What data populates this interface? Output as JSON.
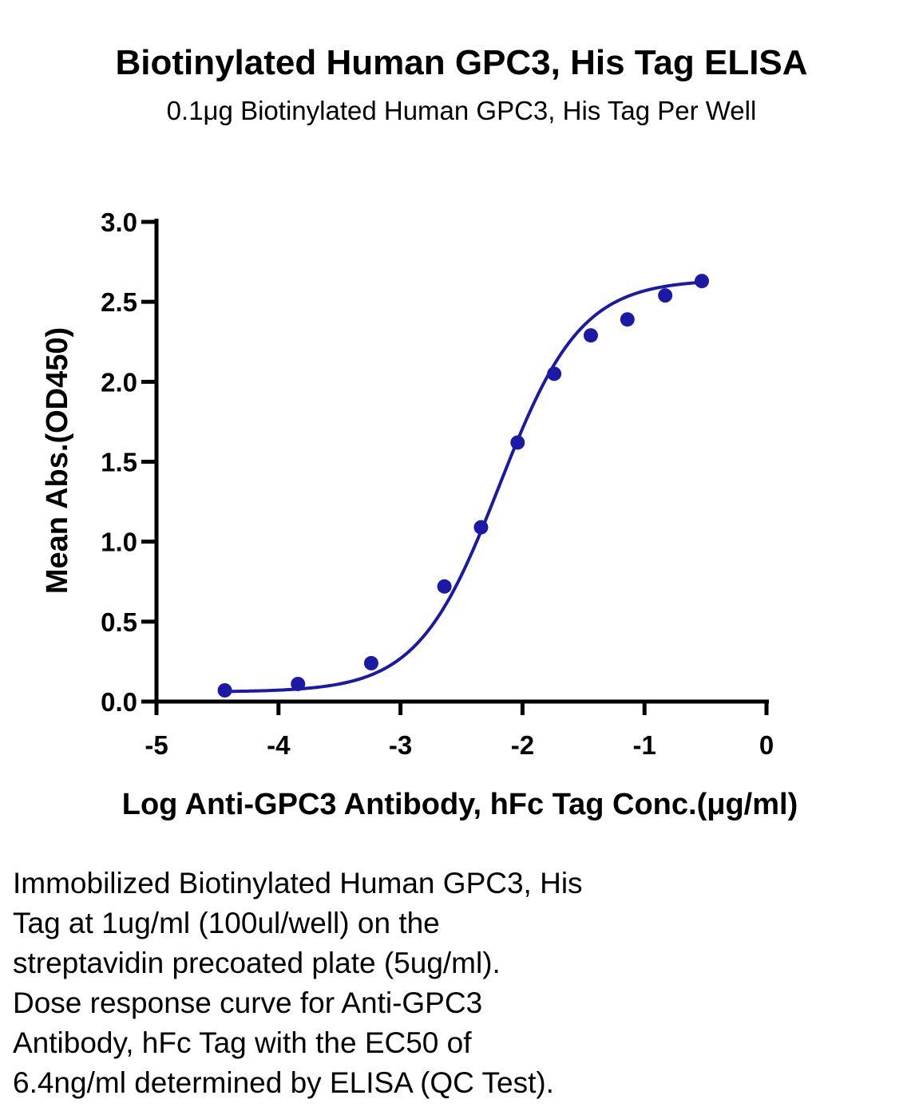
{
  "chart_data": {
    "type": "scatter",
    "title": "Biotinylated Human GPC3, His Tag ELISA",
    "subtitle": "0.1μg Biotinylated Human GPC3, His Tag Per Well",
    "xlabel": "Log Anti-GPC3 Antibody, hFc Tag Conc.(μg/ml)",
    "ylabel": "Mean Abs.(OD450)",
    "xlim": [
      -5,
      0
    ],
    "ylim": [
      0,
      3.0
    ],
    "x_ticks": [
      "-5",
      "-4",
      "-3",
      "-2",
      "-1",
      "0"
    ],
    "y_ticks": [
      "0.0",
      "0.5",
      "1.0",
      "1.5",
      "2.0",
      "2.5",
      "3.0"
    ],
    "grid": false,
    "legend": "none",
    "series": [
      {
        "x": [
          -4.44,
          -3.84,
          -3.24,
          -2.64,
          -2.34,
          -2.04,
          -1.74,
          -1.44,
          -1.14,
          -0.83,
          -0.53
        ],
        "y": [
          0.07,
          0.11,
          0.24,
          0.72,
          1.09,
          1.62,
          2.05,
          2.29,
          2.39,
          2.54,
          2.63
        ],
        "color": "#1a1aa6",
        "fit": "four-parameter logistic",
        "fit_params": {
          "bottom": 0.06,
          "top": 2.64,
          "log_ec50": -2.19,
          "hill_slope": 1.3
        }
      }
    ]
  },
  "caption": {
    "lines": [
      "Immobilized Biotinylated Human GPC3, His",
      "Tag at 1ug/ml (100ul/well) on the",
      "streptavidin precoated plate (5ug/ml).",
      "Dose response curve for Anti-GPC3",
      "Antibody, hFc Tag with the EC50 of",
      "6.4ng/ml determined by ELISA (QC Test)."
    ]
  }
}
